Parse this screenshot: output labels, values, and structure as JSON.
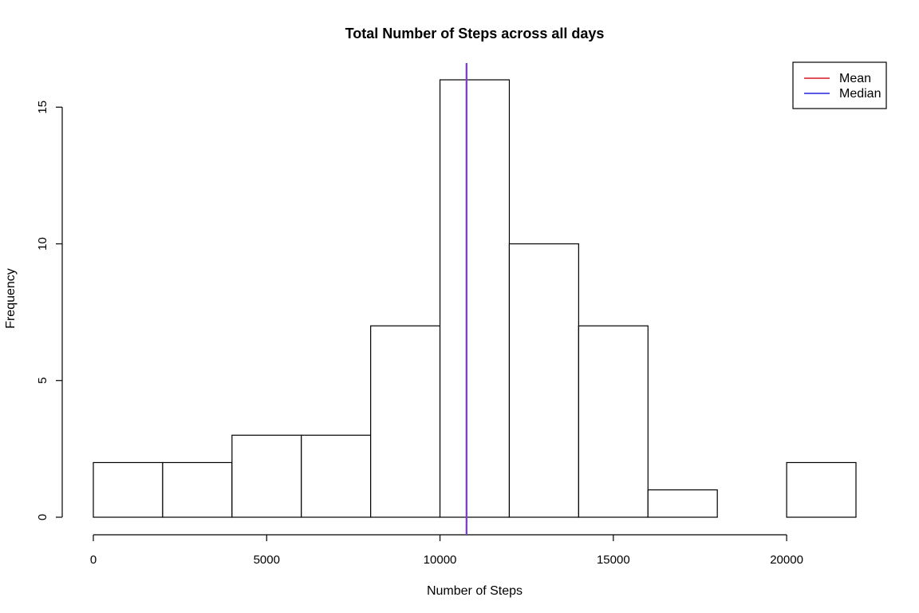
{
  "chart_data": {
    "type": "bar",
    "title": "Total Number of Steps across all days",
    "xlabel": "Number of Steps",
    "ylabel": "Frequency",
    "bins": [
      {
        "start": 0,
        "end": 2000,
        "count": 2
      },
      {
        "start": 2000,
        "end": 4000,
        "count": 2
      },
      {
        "start": 4000,
        "end": 6000,
        "count": 3
      },
      {
        "start": 6000,
        "end": 8000,
        "count": 3
      },
      {
        "start": 8000,
        "end": 10000,
        "count": 7
      },
      {
        "start": 10000,
        "end": 12000,
        "count": 16
      },
      {
        "start": 12000,
        "end": 14000,
        "count": 10
      },
      {
        "start": 14000,
        "end": 16000,
        "count": 7
      },
      {
        "start": 16000,
        "end": 18000,
        "count": 1
      },
      {
        "start": 18000,
        "end": 20000,
        "count": 0
      },
      {
        "start": 20000,
        "end": 22000,
        "count": 2
      }
    ],
    "xlim": [
      0,
      22000
    ],
    "ylim": [
      0,
      16
    ],
    "x_ticks": [
      0,
      5000,
      10000,
      15000,
      20000
    ],
    "x_tick_labels": [
      "0",
      "5000",
      "10000",
      "15000",
      "20000"
    ],
    "y_ticks": [
      0,
      5,
      10,
      15
    ],
    "y_tick_labels": [
      "0",
      "5",
      "10",
      "15"
    ],
    "reference_lines": [
      {
        "name": "Mean",
        "value": 10766,
        "color": "#e0505a"
      },
      {
        "name": "Median",
        "value": 10766,
        "color": "#5a5aea"
      }
    ],
    "overlap_color": "#7b3fc9",
    "legend": {
      "position": "top-right",
      "entries": [
        {
          "label": "Mean",
          "color": "#e0505a"
        },
        {
          "label": "Median",
          "color": "#5a5aea"
        }
      ]
    },
    "grid": false,
    "bar_fill": "#ffffff",
    "bar_stroke": "#000000"
  }
}
